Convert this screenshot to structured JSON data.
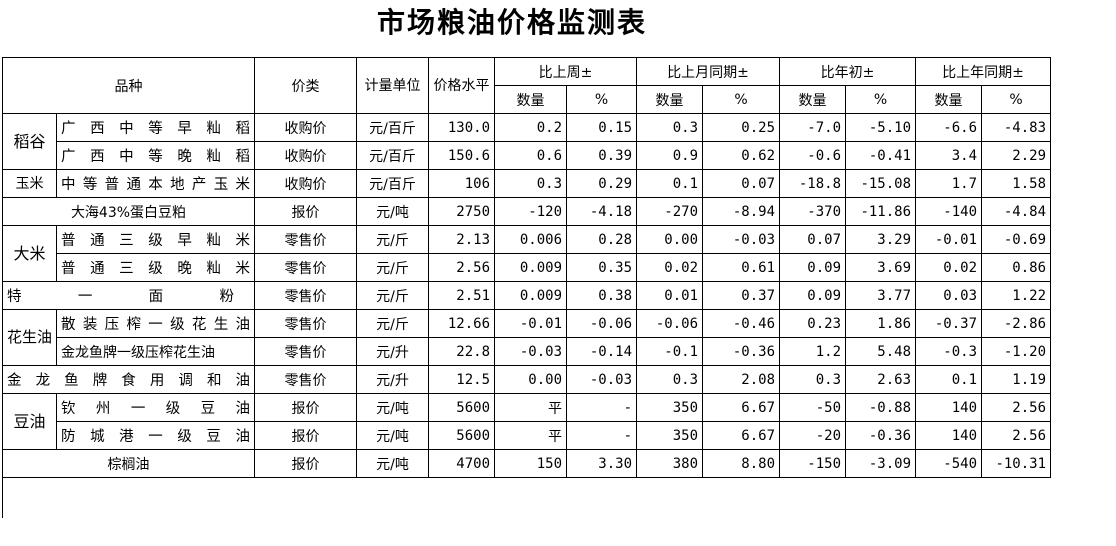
{
  "title": "市场粮油价格监测表",
  "headers": {
    "variety": "品种",
    "price_type": "价类",
    "unit": "计量单位",
    "price_level": "价格水平",
    "prev_week": "比上周±",
    "prev_month_same": "比上月同期±",
    "year_start": "比年初±",
    "prev_year_same": "比上年同期±",
    "qty": "数量",
    "pct": "%"
  },
  "groups": {
    "rice_paddy": "稻谷",
    "corn": "玉米",
    "rice": "大米",
    "peanut_oil": "花生油",
    "soy_oil": "豆油"
  },
  "rows": [
    {
      "name": "广西中等早籼稻",
      "type": "收购价",
      "unit": "元/百斤",
      "price": "130.0",
      "w_q": "0.2",
      "w_p": "0.15",
      "m_q": "0.3",
      "m_p": "0.25",
      "y_q": "-7.0",
      "y_p": "-5.10",
      "ly_q": "-6.6",
      "ly_p": "-4.83"
    },
    {
      "name": "广西中等晚籼稻",
      "type": "收购价",
      "unit": "元/百斤",
      "price": "150.6",
      "w_q": "0.6",
      "w_p": "0.39",
      "m_q": "0.9",
      "m_p": "0.62",
      "y_q": "-0.6",
      "y_p": "-0.41",
      "ly_q": "3.4",
      "ly_p": "2.29"
    },
    {
      "name": "中等普通本地产玉米",
      "type": "收购价",
      "unit": "元/百斤",
      "price": "106",
      "w_q": "0.3",
      "w_p": "0.29",
      "m_q": "0.1",
      "m_p": "0.07",
      "y_q": "-18.8",
      "y_p": "-15.08",
      "ly_q": "1.7",
      "ly_p": "1.58"
    },
    {
      "name": "大海43%蛋白豆粕",
      "type": "报价",
      "unit": "元/吨",
      "price": "2750",
      "w_q": "-120",
      "w_p": "-4.18",
      "m_q": "-270",
      "m_p": "-8.94",
      "y_q": "-370",
      "y_p": "-11.86",
      "ly_q": "-140",
      "ly_p": "-4.84"
    },
    {
      "name": "普通三级早籼米",
      "type": "零售价",
      "unit": "元/斤",
      "price": "2.13",
      "w_q": "0.006",
      "w_p": "0.28",
      "m_q": "0.00",
      "m_p": "-0.03",
      "y_q": "0.07",
      "y_p": "3.29",
      "ly_q": "-0.01",
      "ly_p": "-0.69"
    },
    {
      "name": "普通三级晚籼米",
      "type": "零售价",
      "unit": "元/斤",
      "price": "2.56",
      "w_q": "0.009",
      "w_p": "0.35",
      "m_q": "0.02",
      "m_p": "0.61",
      "y_q": "0.09",
      "y_p": "3.69",
      "ly_q": "0.02",
      "ly_p": "0.86"
    },
    {
      "name": "特一面粉",
      "type": "零售价",
      "unit": "元/斤",
      "price": "2.51",
      "w_q": "0.009",
      "w_p": "0.38",
      "m_q": "0.01",
      "m_p": "0.37",
      "y_q": "0.09",
      "y_p": "3.77",
      "ly_q": "0.03",
      "ly_p": "1.22"
    },
    {
      "name": "散装压榨一级花生油",
      "type": "零售价",
      "unit": "元/斤",
      "price": "12.66",
      "w_q": "-0.01",
      "w_p": "-0.06",
      "m_q": "-0.06",
      "m_p": "-0.46",
      "y_q": "0.23",
      "y_p": "1.86",
      "ly_q": "-0.37",
      "ly_p": "-2.86"
    },
    {
      "name": "金龙鱼牌一级压榨花生油",
      "type": "零售价",
      "unit": "元/升",
      "price": "22.8",
      "w_q": "-0.03",
      "w_p": "-0.14",
      "m_q": "-0.1",
      "m_p": "-0.36",
      "y_q": "1.2",
      "y_p": "5.48",
      "ly_q": "-0.3",
      "ly_p": "-1.20"
    },
    {
      "name": "金龙鱼牌食用调和油",
      "type": "零售价",
      "unit": "元/升",
      "price": "12.5",
      "w_q": "0.00",
      "w_p": "-0.03",
      "m_q": "0.3",
      "m_p": "2.08",
      "y_q": "0.3",
      "y_p": "2.63",
      "ly_q": "0.1",
      "ly_p": "1.19"
    },
    {
      "name": "钦州一级豆油",
      "type": "报价",
      "unit": "元/吨",
      "price": "5600",
      "w_q": "平",
      "w_p": "-",
      "m_q": "350",
      "m_p": "6.67",
      "y_q": "-50",
      "y_p": "-0.88",
      "ly_q": "140",
      "ly_p": "2.56"
    },
    {
      "name": "防城港一级豆油",
      "type": "报价",
      "unit": "元/吨",
      "price": "5600",
      "w_q": "平",
      "w_p": "-",
      "m_q": "350",
      "m_p": "6.67",
      "y_q": "-20",
      "y_p": "-0.36",
      "ly_q": "140",
      "ly_p": "2.56"
    },
    {
      "name": "棕榈油",
      "type": "报价",
      "unit": "元/吨",
      "price": "4700",
      "w_q": "150",
      "w_p": "3.30",
      "m_q": "380",
      "m_p": "8.80",
      "y_q": "-150",
      "y_p": "-3.09",
      "ly_q": "-540",
      "ly_p": "-10.31"
    }
  ]
}
